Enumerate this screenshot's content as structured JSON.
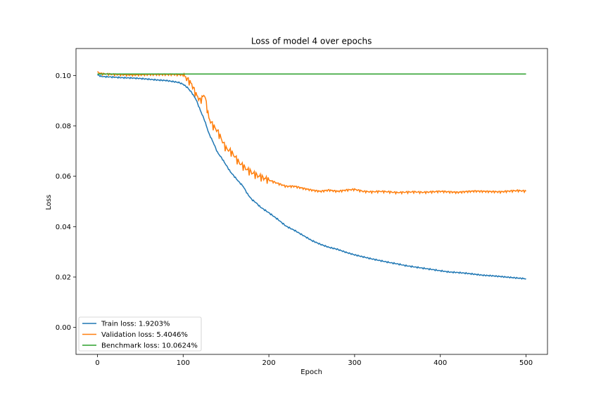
{
  "chart_data": {
    "type": "line",
    "title": "Loss of model 4 over epochs",
    "xlabel": "Epoch",
    "ylabel": "Loss",
    "xlim": [
      -25,
      525
    ],
    "ylim": [
      -0.0107,
      0.1107
    ],
    "xticks": [
      0,
      100,
      200,
      300,
      400,
      500
    ],
    "xtick_labels": [
      "0",
      "100",
      "200",
      "300",
      "400",
      "500"
    ],
    "yticks": [
      0.0,
      0.02,
      0.04,
      0.06,
      0.08,
      0.1
    ],
    "ytick_labels": [
      "0.00",
      "0.02",
      "0.04",
      "0.06",
      "0.08",
      "0.10"
    ],
    "grid": false,
    "legend_position": "lower-left",
    "series": [
      {
        "name": "Train loss: 1.9203%",
        "color": "#1f77b4",
        "x": [
          0,
          5,
          10,
          20,
          30,
          40,
          50,
          60,
          70,
          80,
          90,
          95,
          100,
          105,
          110,
          115,
          120,
          125,
          130,
          135,
          140,
          145,
          150,
          155,
          160,
          165,
          170,
          175,
          180,
          185,
          190,
          200,
          210,
          220,
          230,
          240,
          250,
          260,
          270,
          280,
          290,
          300,
          310,
          320,
          330,
          340,
          350,
          360,
          370,
          380,
          390,
          400,
          410,
          420,
          430,
          440,
          450,
          460,
          470,
          480,
          490,
          500
        ],
        "values": [
          0.1002,
          0.0996,
          0.0995,
          0.0993,
          0.0991,
          0.099,
          0.0988,
          0.0985,
          0.0982,
          0.098,
          0.0975,
          0.0972,
          0.0965,
          0.0952,
          0.0932,
          0.0905,
          0.0862,
          0.0822,
          0.077,
          0.0735,
          0.0695,
          0.0672,
          0.0645,
          0.0618,
          0.0598,
          0.0578,
          0.056,
          0.053,
          0.0508,
          0.0495,
          0.0478,
          0.0455,
          0.043,
          0.0402,
          0.0385,
          0.0365,
          0.0345,
          0.033,
          0.0318,
          0.031,
          0.0298,
          0.0288,
          0.028,
          0.0272,
          0.0265,
          0.0258,
          0.0252,
          0.0245,
          0.024,
          0.0235,
          0.023,
          0.0225,
          0.022,
          0.0218,
          0.0215,
          0.0211,
          0.0207,
          0.0205,
          0.0202,
          0.0199,
          0.0196,
          0.0193
        ]
      },
      {
        "name": "Validation loss: 5.4046%",
        "color": "#ff7f0e",
        "x": [
          0,
          5,
          10,
          20,
          30,
          40,
          50,
          60,
          70,
          80,
          90,
          95,
          100,
          105,
          110,
          115,
          120,
          125,
          130,
          135,
          140,
          145,
          150,
          155,
          160,
          165,
          170,
          175,
          180,
          185,
          190,
          200,
          210,
          220,
          230,
          240,
          250,
          260,
          270,
          280,
          290,
          300,
          310,
          320,
          330,
          340,
          350,
          360,
          370,
          380,
          390,
          400,
          410,
          420,
          430,
          440,
          450,
          460,
          470,
          480,
          490,
          500
        ],
        "values": [
          0.1013,
          0.1007,
          0.1006,
          0.1004,
          0.1003,
          0.1002,
          0.1003,
          0.1004,
          0.1004,
          0.1004,
          0.1004,
          0.1003,
          0.1002,
          0.0985,
          0.0965,
          0.0925,
          0.09,
          0.0925,
          0.083,
          0.08,
          0.078,
          0.0745,
          0.071,
          0.07,
          0.068,
          0.0655,
          0.064,
          0.0625,
          0.0615,
          0.0605,
          0.0598,
          0.0585,
          0.0572,
          0.056,
          0.056,
          0.0552,
          0.0545,
          0.054,
          0.0545,
          0.054,
          0.0545,
          0.0548,
          0.054,
          0.0538,
          0.054,
          0.0538,
          0.0535,
          0.0537,
          0.0538,
          0.0536,
          0.0538,
          0.054,
          0.0538,
          0.0536,
          0.0539,
          0.0541,
          0.054,
          0.0539,
          0.0538,
          0.0541,
          0.0543,
          0.0541
        ]
      },
      {
        "name": "Benchmark loss: 10.0624%",
        "color": "#2ca02c",
        "x": [
          0,
          500
        ],
        "values": [
          0.1006,
          0.1006
        ]
      }
    ]
  }
}
